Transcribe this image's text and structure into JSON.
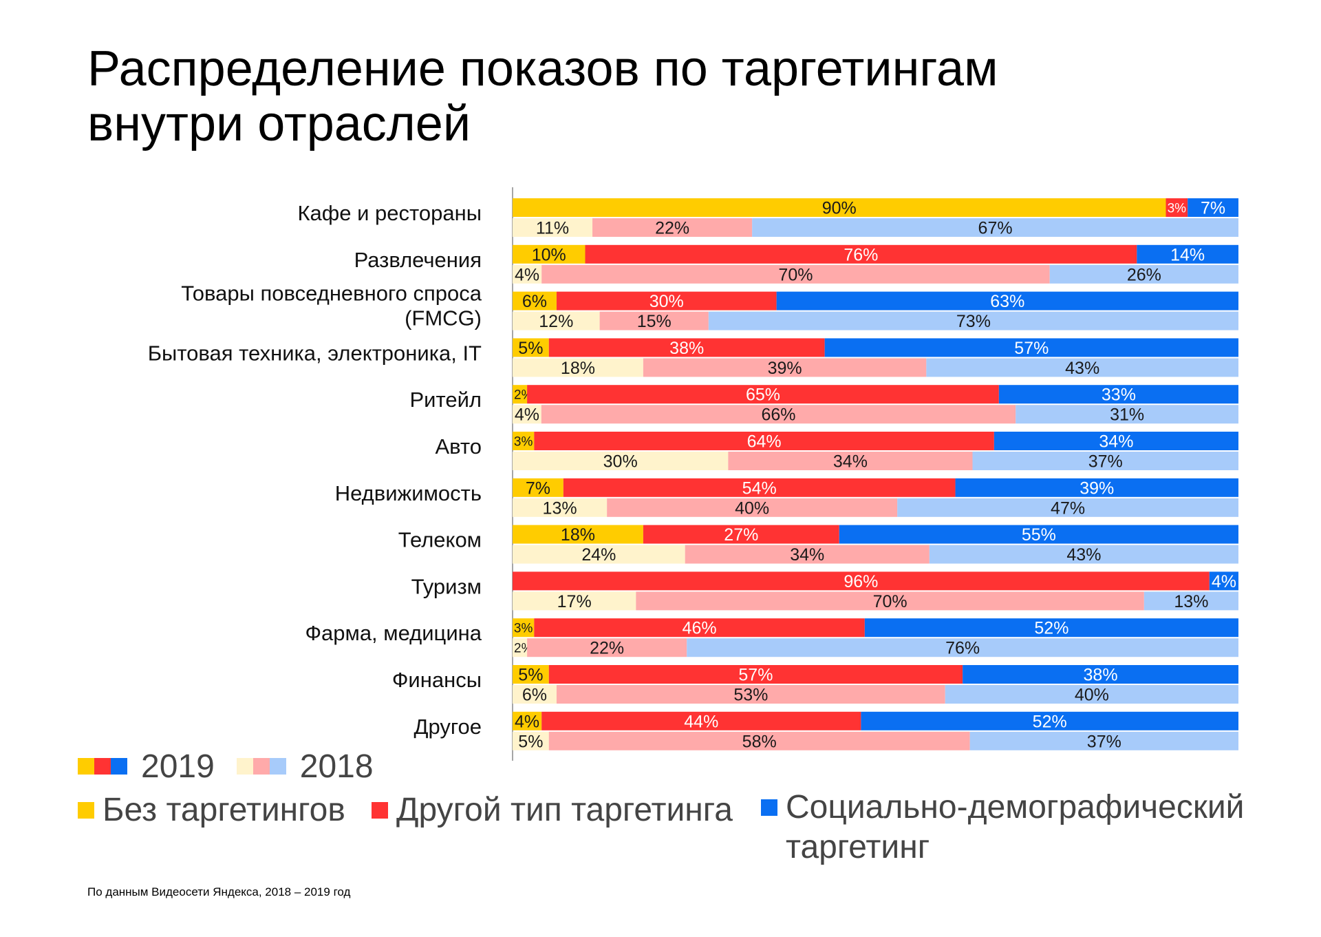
{
  "title": {
    "line1": "Распределение показов по таргетингам",
    "line2": "внутри отраслей"
  },
  "colors": {
    "2019": [
      "#FFCC00",
      "#FF3333",
      "#0A6FF2"
    ],
    "2018": [
      "#FFF3CC",
      "#FFAAAA",
      "#A7CBFA"
    ],
    "label_dark": "#1a1a1a",
    "label_light": "#ffffff",
    "axis": "#888888"
  },
  "legend": {
    "year_2019": "2019",
    "year_2018": "2018",
    "categories": [
      {
        "label": "Без таргетингов",
        "color": "#FFCC00"
      },
      {
        "label": "Другой тип таргетинга",
        "color": "#FF3333"
      },
      {
        "label": "Социально-демографический таргетинг",
        "line1": "Социально-демографический",
        "line2": "таргетинг",
        "color": "#0A6FF2"
      }
    ]
  },
  "footnote": "По данным Видеосети Яндекса, 2018 – 2019 год",
  "chart_data": {
    "type": "bar",
    "orientation": "horizontal",
    "stacked": true,
    "normalized": true,
    "title": "Распределение показов по таргетингам внутри отраслей",
    "xlim": [
      0,
      100
    ],
    "unit": "%",
    "segments": [
      "Без таргетингов",
      "Другой тип таргетинга",
      "Социально-демографический таргетинг"
    ],
    "years": [
      "2019",
      "2018"
    ],
    "categories": [
      {
        "name": "Кафе и рестораны",
        "values_2019": [
          90,
          3,
          7
        ],
        "values_2018": [
          11,
          22,
          67
        ]
      },
      {
        "name": "Развлечения",
        "values_2019": [
          10,
          76,
          14
        ],
        "values_2018": [
          4,
          70,
          26
        ]
      },
      {
        "name": "Товары повседневного спроса (FMCG)",
        "line1": "Товары повседневного спроса",
        "line2": "(FMCG)",
        "values_2019": [
          6,
          30,
          63
        ],
        "values_2018": [
          12,
          15,
          73
        ]
      },
      {
        "name": "Бытовая техника, электроника, IT",
        "values_2019": [
          5,
          38,
          57
        ],
        "values_2018": [
          18,
          39,
          43
        ]
      },
      {
        "name": "Ритейл",
        "values_2019": [
          2,
          65,
          33
        ],
        "values_2018": [
          4,
          66,
          31
        ]
      },
      {
        "name": "Авто",
        "values_2019": [
          3,
          64,
          34
        ],
        "values_2018": [
          30,
          34,
          37
        ]
      },
      {
        "name": "Недвижимость",
        "values_2019": [
          7,
          54,
          39
        ],
        "values_2018": [
          13,
          40,
          47
        ]
      },
      {
        "name": "Телеком",
        "values_2019": [
          18,
          27,
          55
        ],
        "values_2018": [
          24,
          34,
          43
        ]
      },
      {
        "name": "Туризм",
        "values_2019": [
          null,
          96,
          4
        ],
        "values_2018": [
          17,
          70,
          13
        ]
      },
      {
        "name": "Фарма, медицина",
        "values_2019": [
          3,
          46,
          52
        ],
        "values_2018": [
          2,
          22,
          76
        ]
      },
      {
        "name": "Финансы",
        "values_2019": [
          5,
          57,
          38
        ],
        "values_2018": [
          6,
          53,
          40
        ]
      },
      {
        "name": "Другое",
        "values_2019": [
          4,
          44,
          52
        ],
        "values_2018": [
          5,
          58,
          37
        ]
      }
    ]
  }
}
